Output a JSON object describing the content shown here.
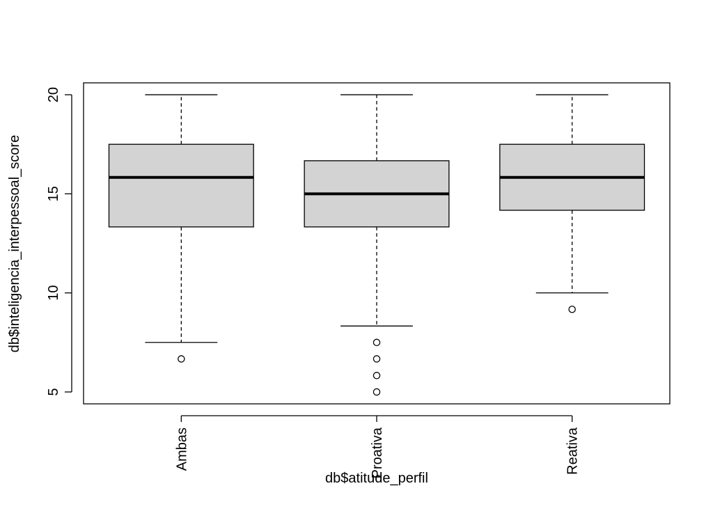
{
  "chart_data": {
    "type": "boxplot",
    "xlabel": "db$atitude_perfil",
    "ylabel": "db$inteligencia_interpessoal_score",
    "ylim": [
      4.4,
      20.6
    ],
    "y_ticks": [
      5,
      10,
      15,
      20
    ],
    "categories": [
      "Ambas",
      "Proativa",
      "Reativa"
    ],
    "boxes": [
      {
        "name": "Ambas",
        "whisker_low": 7.5,
        "q1": 13.33,
        "median": 15.83,
        "q3": 17.5,
        "whisker_high": 20,
        "outliers": [
          6.67
        ]
      },
      {
        "name": "Proativa",
        "whisker_low": 8.33,
        "q1": 13.33,
        "median": 15.0,
        "q3": 16.67,
        "whisker_high": 20,
        "outliers": [
          7.5,
          6.67,
          5.83,
          5.0
        ]
      },
      {
        "name": "Reativa",
        "whisker_low": 10.0,
        "q1": 14.17,
        "median": 15.83,
        "q3": 17.5,
        "whisker_high": 20,
        "outliers": [
          9.17
        ]
      }
    ],
    "box_fill": "#d3d3d3",
    "grid": false
  }
}
